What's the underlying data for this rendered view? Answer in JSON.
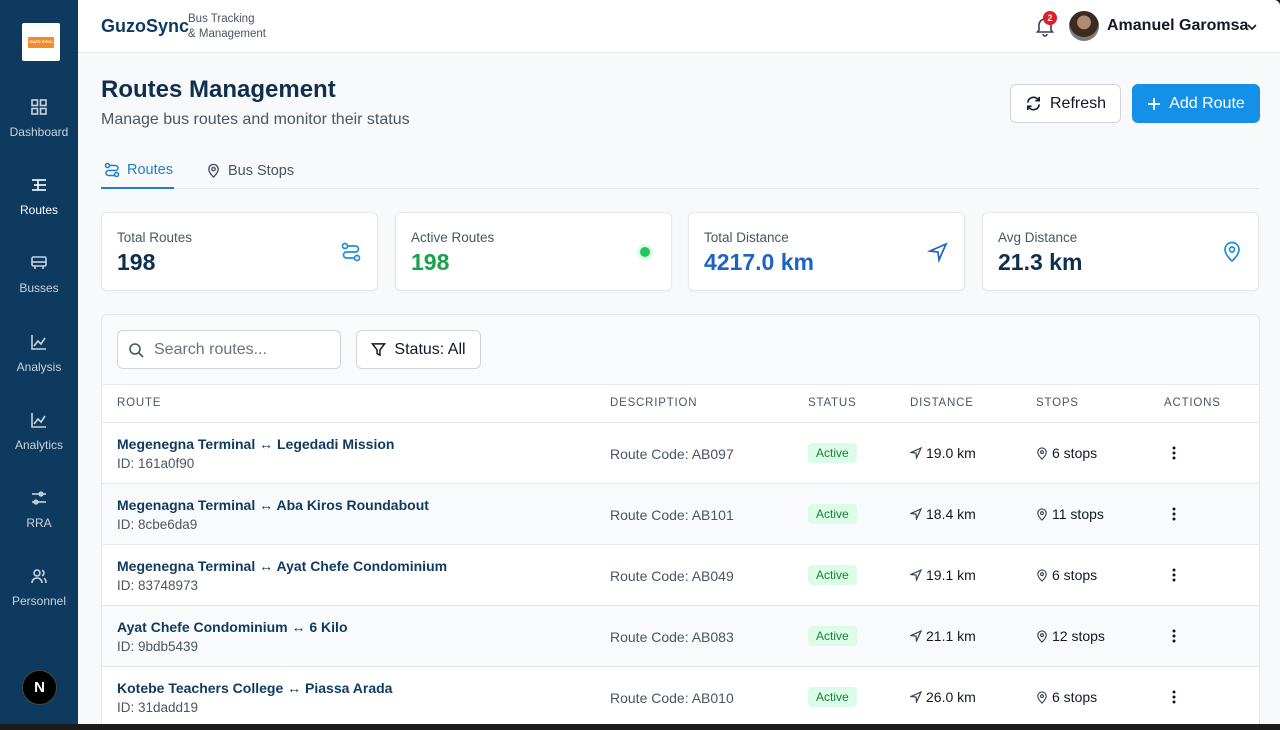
{
  "brand": {
    "name": "GuzoSync",
    "tagline_line1": "Bus Tracking",
    "tagline_line2": "& Management",
    "logo_text": "GUZO SYNC"
  },
  "sidebar": {
    "items": [
      {
        "label": "Dashboard",
        "icon": "grid-icon"
      },
      {
        "label": "Routes",
        "icon": "routes-icon",
        "active": true
      },
      {
        "label": "Busses",
        "icon": "bus-icon"
      },
      {
        "label": "Analysis",
        "icon": "chart-line-icon"
      },
      {
        "label": "Analytics",
        "icon": "chart-line-icon"
      },
      {
        "label": "RRA",
        "icon": "sliders-icon"
      },
      {
        "label": "Personnel",
        "icon": "users-icon"
      }
    ],
    "badge": "N"
  },
  "header": {
    "notification_count": "2",
    "user_name": "Amanuel Garomsa"
  },
  "page": {
    "title": "Routes Management",
    "subtitle": "Manage bus routes and monitor their status",
    "refresh_label": "Refresh",
    "add_label": "Add Route"
  },
  "tabs": [
    {
      "label": "Routes",
      "active": true
    },
    {
      "label": "Bus Stops",
      "active": false
    }
  ],
  "stats": [
    {
      "label": "Total Routes",
      "value": "198",
      "color": "#0f2f4f"
    },
    {
      "label": "Active Routes",
      "value": "198",
      "color": "#16a34a"
    },
    {
      "label": "Total Distance",
      "value": "4217.0 km",
      "color": "#1e63c4"
    },
    {
      "label": "Avg Distance",
      "value": "21.3 km",
      "color": "#0f2f4f"
    }
  ],
  "toolbar": {
    "search_placeholder": "Search routes...",
    "filter_label": "Status: All"
  },
  "table": {
    "columns": [
      "ROUTE",
      "DESCRIPTION",
      "STATUS",
      "DISTANCE",
      "STOPS",
      "ACTIONS"
    ],
    "rows": [
      {
        "name": "Megenegna Terminal ↔ Legedadi Mission",
        "id": "ID: 161a0f90",
        "description": "Route Code: AB097",
        "status": "Active",
        "distance": "19.0 km",
        "stops": "6 stops"
      },
      {
        "name": "Megenagna Terminal ↔ Aba Kiros Roundabout",
        "id": "ID: 8cbe6da9",
        "description": "Route Code: AB101",
        "status": "Active",
        "distance": "18.4 km",
        "stops": "11 stops"
      },
      {
        "name": "Megenegna Terminal ↔ Ayat Chefe Condominium",
        "id": "ID: 83748973",
        "description": "Route Code: AB049",
        "status": "Active",
        "distance": "19.1 km",
        "stops": "6 stops"
      },
      {
        "name": "Ayat Chefe Condominium ↔ 6 Kilo",
        "id": "ID: 9bdb5439",
        "description": "Route Code: AB083",
        "status": "Active",
        "distance": "21.1 km",
        "stops": "12 stops"
      },
      {
        "name": "Kotebe Teachers College ↔ Piassa Arada",
        "id": "ID: 31dadd19",
        "description": "Route Code: AB010",
        "status": "Active",
        "distance": "26.0 km",
        "stops": "6 stops"
      }
    ]
  },
  "colors": {
    "sidebar": "#0f3a5f",
    "accent": "#1490e8",
    "active_status": "#15803d"
  }
}
